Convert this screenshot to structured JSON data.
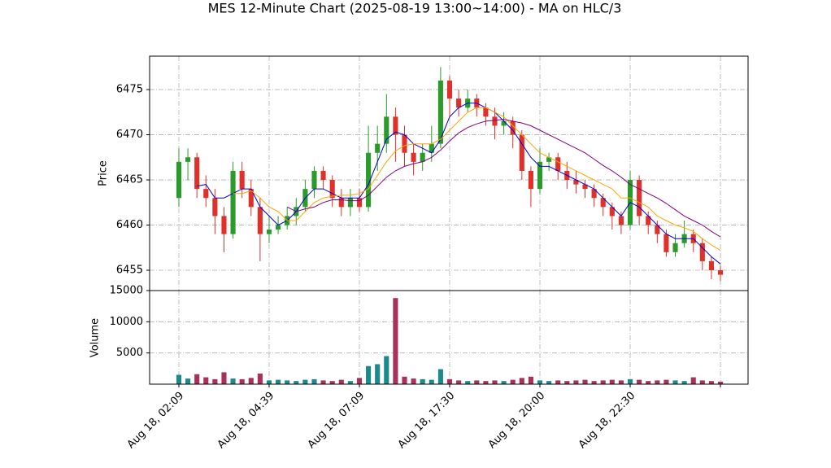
{
  "chart_data": {
    "type": "candlestick",
    "title": "MES 12-Minute Chart (2025-08-19 13:00~14:00) - MA on HLC/3",
    "y_label": "Price",
    "volume_label": "Volume",
    "xlim": [
      -3.24,
      63.06
    ],
    "xticks": [
      {
        "value": 0,
        "label": "Aug 18, 02:09"
      },
      {
        "value": 10,
        "label": "Aug 18, 04:39"
      },
      {
        "value": 20,
        "label": "Aug 18, 07:09"
      },
      {
        "value": 30,
        "label": "Aug 18, 17:30"
      },
      {
        "value": 40,
        "label": "Aug 18, 20:00"
      },
      {
        "value": 50,
        "label": "Aug 18, 22:30"
      },
      {
        "value": 60,
        "label": ""
      }
    ],
    "ylim": [
      6452.75,
      6478.7
    ],
    "yticks": [
      6455,
      6460,
      6465,
      6470,
      6475
    ],
    "volume_ylim": [
      0,
      15000
    ],
    "volume_yticks": [
      5000,
      10000,
      15000
    ],
    "grid": true,
    "up_color": "#2a9a2a",
    "down_color": "#e0302a",
    "volume_up_color": "#1a8a8a",
    "volume_down_color": "#a8305a",
    "open": [
      6463,
      6467,
      6467.5,
      6464,
      6463,
      6461,
      6459,
      6466,
      6464,
      6462,
      6459,
      6459.5,
      6460,
      6461,
      6462,
      6464,
      6466,
      6465,
      6463,
      6462,
      6463,
      6462,
      6468,
      6469,
      6472,
      6470,
      6468,
      6467,
      6468,
      6469,
      6476,
      6474,
      6473,
      6474,
      6473,
      6472,
      6471,
      6471.5,
      6470,
      6466,
      6464,
      6467,
      6467.5,
      6466,
      6465,
      6464.5,
      6464,
      6463,
      6462,
      6461,
      6460,
      6465,
      6461,
      6460,
      6459,
      6457,
      6458,
      6459,
      6458,
      6456,
      6455
    ],
    "high": [
      6468.5,
      6468.5,
      6468,
      6465.5,
      6464,
      6462,
      6467,
      6467,
      6465,
      6463,
      6461,
      6461,
      6462,
      6463,
      6465,
      6466.5,
      6466.5,
      6465.5,
      6464,
      6464,
      6464,
      6471,
      6471,
      6474.5,
      6473,
      6471,
      6469,
      6469,
      6471,
      6477.5,
      6476.5,
      6475,
      6475,
      6474.5,
      6473.5,
      6473,
      6472.5,
      6472,
      6470.5,
      6466.5,
      6468.5,
      6468,
      6468,
      6467,
      6466,
      6465,
      6464.5,
      6463.5,
      6462.5,
      6461.5,
      6466,
      6465.5,
      6461.5,
      6460.5,
      6459.5,
      6459,
      6460.5,
      6459.5,
      6458.5,
      6456.5,
      6455.5
    ],
    "low": [
      6462,
      6465,
      6463,
      6462,
      6459,
      6457,
      6458.5,
      6463,
      6461,
      6456,
      6458,
      6459,
      6459.5,
      6460,
      6461.5,
      6463,
      6464,
      6462,
      6461,
      6461,
      6461.5,
      6461.5,
      6466,
      6468,
      6467,
      6466.5,
      6465.5,
      6466,
      6467,
      6468.5,
      6472,
      6472,
      6472.5,
      6472,
      6471,
      6469.5,
      6470,
      6468.5,
      6465,
      6462,
      6463.5,
      6466,
      6465,
      6464,
      6463.5,
      6463,
      6462,
      6461,
      6459.5,
      6459,
      6459.5,
      6460,
      6459,
      6458,
      6456.5,
      6456.5,
      6457.5,
      6457,
      6455,
      6454,
      6453.8
    ],
    "close": [
      6467,
      6467.5,
      6464,
      6463,
      6461,
      6459,
      6466,
      6464,
      6462,
      6459,
      6459.5,
      6460,
      6461,
      6462,
      6464,
      6466,
      6465,
      6463,
      6462,
      6463,
      6462,
      6468,
      6469,
      6472,
      6470,
      6468,
      6467,
      6468,
      6469,
      6476,
      6474,
      6473,
      6474,
      6473,
      6472,
      6471,
      6471.5,
      6470,
      6466,
      6464,
      6467,
      6467.5,
      6466,
      6465,
      6464.5,
      6464,
      6463,
      6462,
      6461,
      6460,
      6465,
      6461,
      6460,
      6459,
      6457,
      6458,
      6459,
      6458,
      6456,
      6455,
      6454.5
    ],
    "volume": [
      1500,
      900,
      1600,
      1100,
      800,
      1900,
      900,
      800,
      1000,
      1700,
      600,
      700,
      600,
      500,
      700,
      800,
      600,
      500,
      700,
      500,
      1000,
      2900,
      3200,
      4500,
      13800,
      1200,
      900,
      800,
      700,
      2400,
      800,
      600,
      500,
      600,
      500,
      600,
      500,
      700,
      1000,
      1200,
      600,
      500,
      600,
      500,
      600,
      700,
      500,
      600,
      700,
      600,
      800,
      700,
      500,
      600,
      700,
      600,
      500,
      1100,
      600,
      500,
      400
    ],
    "moving_averages": [
      {
        "color": "#0000dd",
        "values": [
          null,
          null,
          6464.3,
          6464.5,
          6463,
          6463,
          6463.5,
          6464,
          6464,
          6462,
          6461,
          6460,
          6460.5,
          6461.5,
          6463,
          6464,
          6464,
          6463.5,
          6463,
          6463,
          6463,
          6464.5,
          6467,
          6469.5,
          6470.3,
          6470,
          6469,
          6468.5,
          6468,
          6469.5,
          6472,
          6473,
          6473.5,
          6473.5,
          6473,
          6472.5,
          6471.5,
          6470.5,
          6469,
          6467.5,
          6466.5,
          6466.5,
          6466,
          6465.5,
          6465,
          6464.5,
          6464,
          6463,
          6462,
          6461,
          6462.5,
          6462,
          6461,
          6460,
          6459,
          6458.5,
          6458.5,
          6458.5,
          6457.5,
          6456.5,
          6455.7
        ]
      },
      {
        "color": "#ffa500",
        "values": [
          null,
          null,
          null,
          null,
          null,
          null,
          6463.5,
          6463.5,
          6463.8,
          6463,
          6462,
          6461.5,
          6460.5,
          6460.5,
          6461.5,
          6462.5,
          6463,
          6463.2,
          6463.3,
          6463.3,
          6463.5,
          6464,
          6465.5,
          6467,
          6468.2,
          6468.8,
          6469,
          6469,
          6469,
          6469.5,
          6470.5,
          6471.5,
          6472.5,
          6473,
          6473,
          6472.5,
          6472,
          6471,
          6470,
          6469,
          6468,
          6467.5,
          6467,
          6466.5,
          6466,
          6465.5,
          6465,
          6464.5,
          6464,
          6463,
          6463,
          6462.5,
          6462,
          6461,
          6460.5,
          6460,
          6459.7,
          6459.3,
          6458.5,
          6457.8,
          6457.2
        ]
      },
      {
        "color": "#800080",
        "values": [
          null,
          null,
          null,
          null,
          null,
          null,
          null,
          null,
          null,
          null,
          null,
          null,
          6462,
          6461.5,
          6461.8,
          6462,
          6462.5,
          6462.8,
          6462.8,
          6462.7,
          6462.7,
          6463.3,
          6464.3,
          6465.3,
          6466,
          6466.5,
          6466.8,
          6467,
          6467.5,
          6468.3,
          6469.3,
          6470.2,
          6470.8,
          6471.2,
          6471.5,
          6471.6,
          6471.7,
          6471.5,
          6471.3,
          6471,
          6470.5,
          6470,
          6469.5,
          6469,
          6468.5,
          6468,
          6467.3,
          6466.6,
          6466,
          6465.3,
          6464.5,
          6464,
          6463.5,
          6463,
          6462.4,
          6461.7,
          6461,
          6460.5,
          6460,
          6459.3,
          6458.7
        ]
      }
    ]
  }
}
